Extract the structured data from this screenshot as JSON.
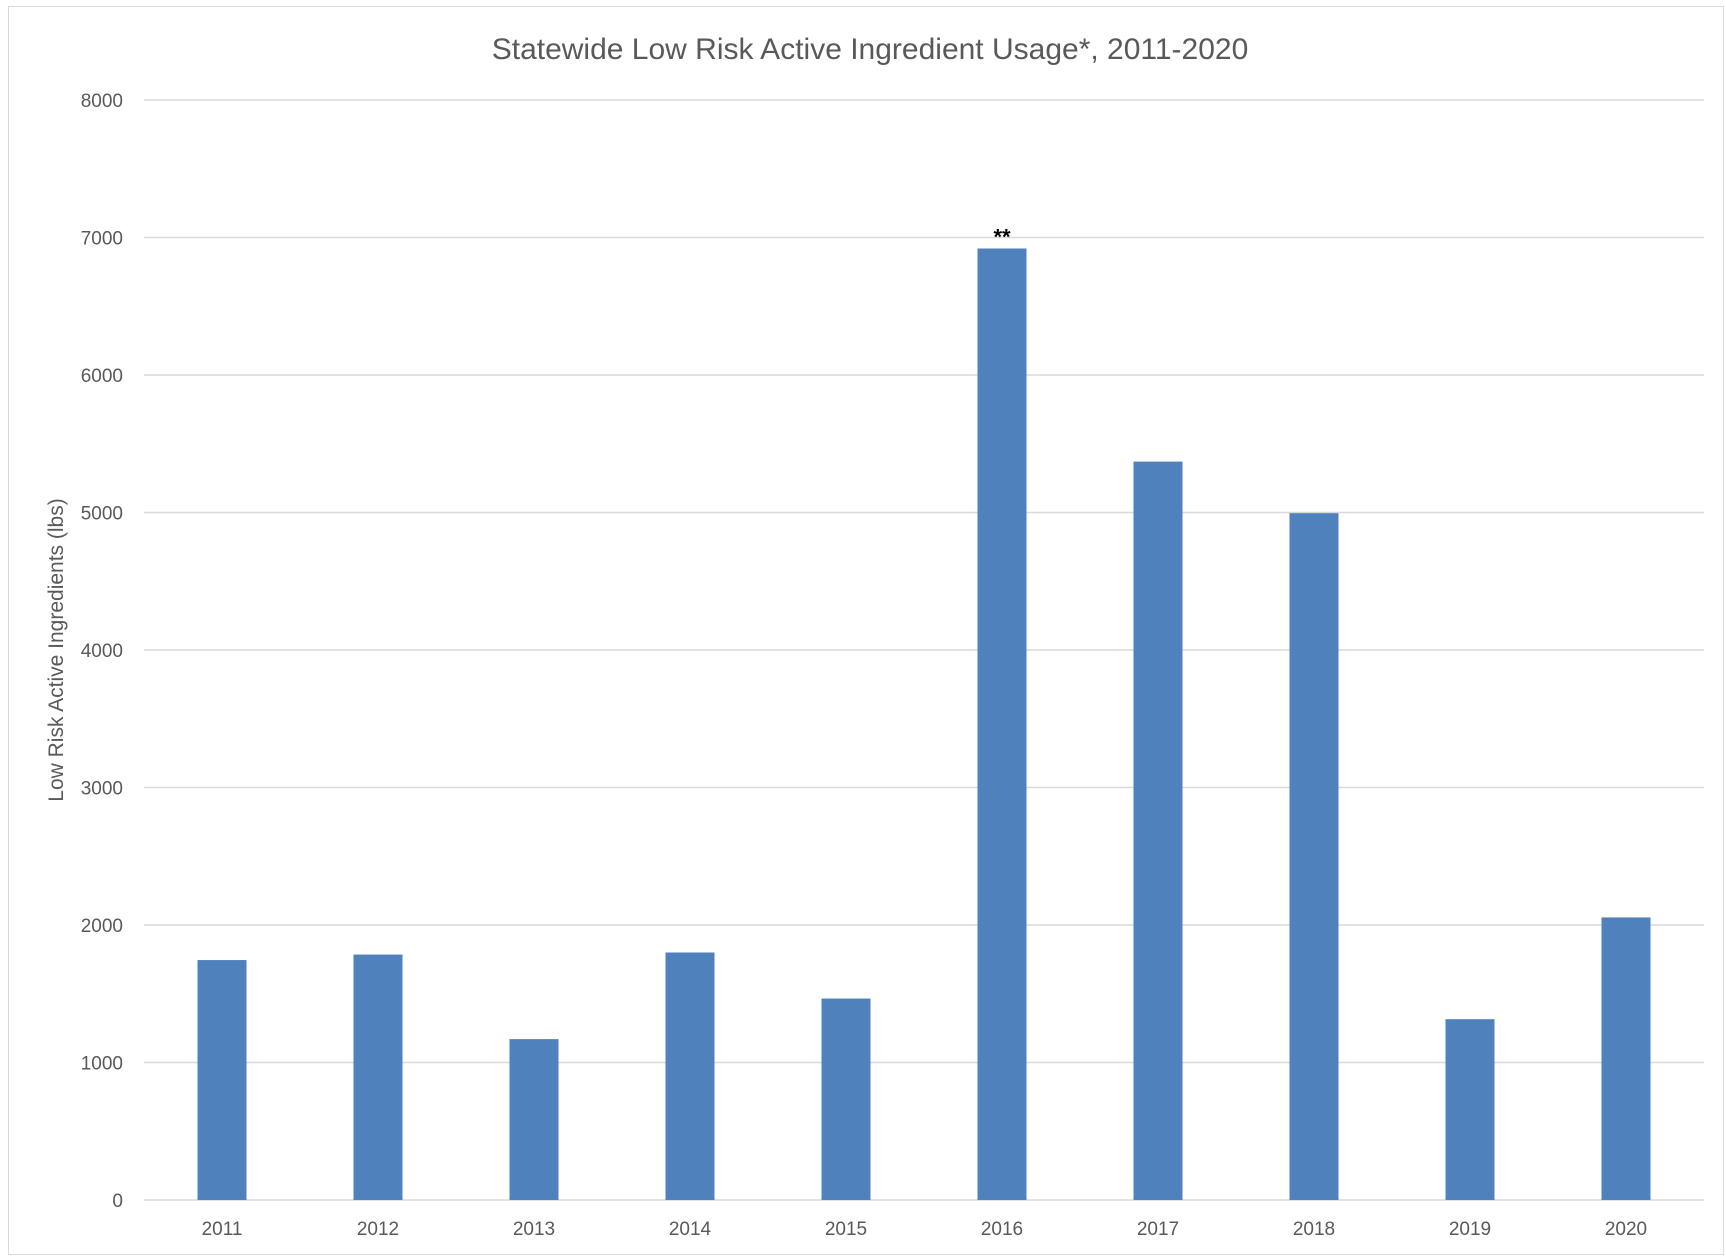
{
  "chart_data": {
    "type": "bar",
    "title": "Statewide Low Risk Active Ingredient Usage*, 2011-2020",
    "xlabel": "",
    "ylabel": "Low Risk Active Ingredients (lbs)",
    "categories": [
      "2011",
      "2012",
      "2013",
      "2014",
      "2015",
      "2016",
      "2017",
      "2018",
      "2019",
      "2020"
    ],
    "values": [
      1745,
      1785,
      1170,
      1800,
      1465,
      6920,
      5370,
      4995,
      1315,
      2055
    ],
    "ylim": [
      0,
      8000
    ],
    "yticks": [
      "0",
      "1000",
      "2000",
      "3000",
      "4000",
      "5000",
      "6000",
      "7000",
      "8000"
    ],
    "annotations": [
      {
        "category": "2016",
        "text": "**"
      }
    ],
    "grid": true,
    "legend": "none",
    "bar_color": "#4f81bd",
    "grid_color": "#d9d9d9"
  }
}
